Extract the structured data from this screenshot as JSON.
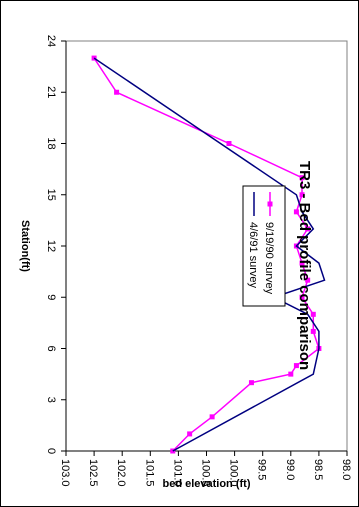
{
  "chart_data": {
    "type": "line",
    "title": "TR3 - Bed profile comparison",
    "xlabel": "Station(ft)",
    "ylabel": "bed elevation (ft)",
    "xlim": [
      0,
      24
    ],
    "ylim": [
      98.0,
      103.0
    ],
    "x_ticks": [
      0,
      3,
      6,
      9,
      12,
      15,
      18,
      21,
      24
    ],
    "y_ticks": [
      98.0,
      98.5,
      99.0,
      99.5,
      100.0,
      100.5,
      101.0,
      101.5,
      102.0,
      102.5,
      103.0
    ],
    "grid": false,
    "legend_position": "center-left",
    "series": [
      {
        "name": "9/19/90 survey",
        "color": "#ff00ff",
        "marker": "square",
        "x": [
          0,
          1,
          2,
          4,
          4.5,
          5,
          6,
          7,
          8,
          9,
          10,
          11,
          12,
          13,
          14,
          15,
          16,
          18,
          21,
          23
        ],
        "y": [
          101.1,
          100.8,
          100.4,
          99.7,
          99.0,
          98.9,
          98.5,
          98.6,
          98.6,
          98.8,
          98.7,
          98.8,
          98.9,
          98.7,
          98.9,
          98.8,
          98.8,
          100.1,
          102.1,
          102.5
        ]
      },
      {
        "name": "4/6/91 survey",
        "color": "#000080",
        "marker": "none",
        "x": [
          0,
          4.5,
          6,
          7,
          8,
          9,
          10,
          11,
          12,
          13,
          14,
          15,
          23
        ],
        "y": [
          101.1,
          98.6,
          98.5,
          98.5,
          98.7,
          99.3,
          98.4,
          98.5,
          98.9,
          98.6,
          98.8,
          98.9,
          102.5
        ]
      }
    ]
  }
}
